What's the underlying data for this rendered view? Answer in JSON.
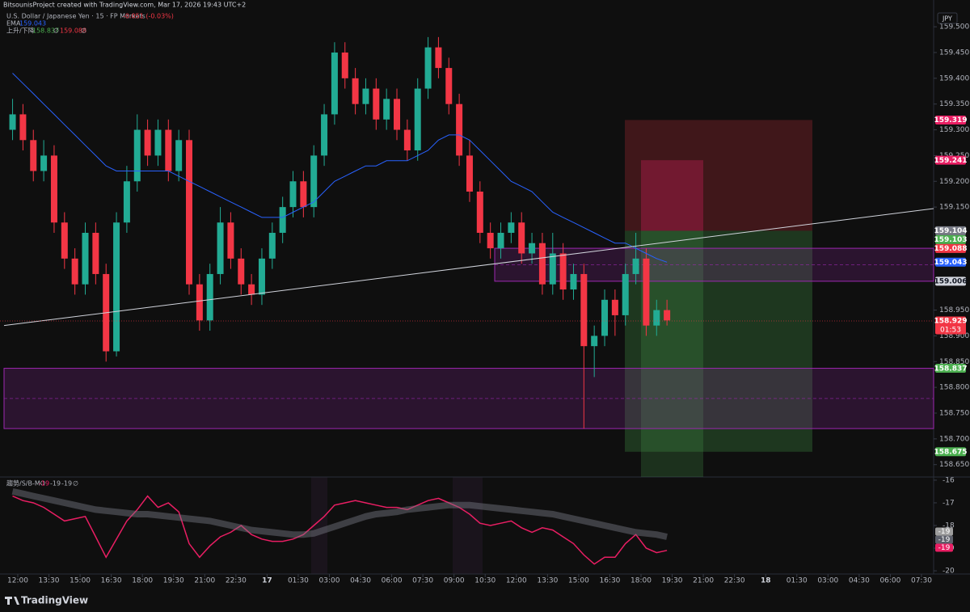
{
  "header": {
    "credit": "BitsounisProject created with TradingView.com, Mar 17, 2026 19:43 UTC+2",
    "symbol": "U.S. Dollar / Japanese Yen · 15 · FP Markets",
    "change": "-0.051 (-0.03%)",
    "ema_label": "EMA",
    "ema_value": "159.043",
    "st_label": "上升/下降",
    "st_up": "158.837",
    "st_up_sym": "∅",
    "st_down": "159.088",
    "st_down_sym": "∅",
    "currency": "JPY",
    "brand": "TradingView"
  },
  "chart_data": {
    "type": "candlestick",
    "xlim": [
      -1.21,
      88.67
    ],
    "xticks": [
      {
        "value": 0.5,
        "label": "12:00"
      },
      {
        "value": 3.5,
        "label": "13:30"
      },
      {
        "value": 6.5,
        "label": "15:00"
      },
      {
        "value": 9.5,
        "label": "16:30"
      },
      {
        "value": 12.5,
        "label": "18:00"
      },
      {
        "value": 15.5,
        "label": "19:30"
      },
      {
        "value": 18.5,
        "label": "21:00"
      },
      {
        "value": 21.5,
        "label": "22:30"
      },
      {
        "value": 24.5,
        "label": "17"
      },
      {
        "value": 27.5,
        "label": "01:30"
      },
      {
        "value": 30.5,
        "label": "03:00"
      },
      {
        "value": 33.5,
        "label": "04:30"
      },
      {
        "value": 36.5,
        "label": "06:00"
      },
      {
        "value": 39.5,
        "label": "07:30"
      },
      {
        "value": 42.5,
        "label": "09:00"
      },
      {
        "value": 45.5,
        "label": "10:30"
      },
      {
        "value": 48.5,
        "label": "12:00"
      },
      {
        "value": 51.5,
        "label": "13:30"
      },
      {
        "value": 54.5,
        "label": "15:00"
      },
      {
        "value": 57.5,
        "label": "16:30"
      },
      {
        "value": 60.5,
        "label": "18:00"
      },
      {
        "value": 63.5,
        "label": "19:30"
      },
      {
        "value": 66.5,
        "label": "21:00"
      },
      {
        "value": 69.5,
        "label": "22:30"
      },
      {
        "value": 72.5,
        "label": "18"
      },
      {
        "value": 75.5,
        "label": "01:30"
      },
      {
        "value": 78.5,
        "label": "03:00"
      },
      {
        "value": 81.5,
        "label": "04:30"
      },
      {
        "value": 84.5,
        "label": "06:00"
      },
      {
        "value": 87.5,
        "label": "07:30"
      }
    ],
    "ylim": [
      158.626,
      159.53
    ],
    "yticks": [
      {
        "value": 159.5,
        "label": "159.500"
      },
      {
        "value": 159.45,
        "label": "159.450"
      },
      {
        "value": 159.4,
        "label": "159.400"
      },
      {
        "value": 159.35,
        "label": "159.350"
      },
      {
        "value": 159.3,
        "label": "159.300"
      },
      {
        "value": 159.25,
        "label": "159.250"
      },
      {
        "value": 159.2,
        "label": "159.200"
      },
      {
        "value": 159.15,
        "label": "159.150"
      },
      {
        "value": 158.95,
        "label": "158.950"
      },
      {
        "value": 158.9,
        "label": "158.900"
      },
      {
        "value": 158.85,
        "label": "158.850"
      },
      {
        "value": 158.8,
        "label": "158.800"
      },
      {
        "value": 158.75,
        "label": "158.750"
      },
      {
        "value": 158.7,
        "label": "158.700"
      },
      {
        "value": 158.65,
        "label": "158.650"
      }
    ],
    "up_color": "#22ab94",
    "down_color": "#f23645",
    "candles": [
      [
        159.3,
        159.36,
        159.28,
        159.33
      ],
      [
        159.33,
        159.35,
        159.26,
        159.28
      ],
      [
        159.28,
        159.3,
        159.2,
        159.22
      ],
      [
        159.22,
        159.28,
        159.2,
        159.25
      ],
      [
        159.25,
        159.27,
        159.1,
        159.12
      ],
      [
        159.12,
        159.14,
        159.03,
        159.05
      ],
      [
        159.05,
        159.07,
        158.98,
        159.0
      ],
      [
        159.0,
        159.12,
        158.98,
        159.1
      ],
      [
        159.1,
        159.12,
        159.0,
        159.02
      ],
      [
        159.02,
        159.04,
        158.85,
        158.87
      ],
      [
        158.87,
        159.14,
        158.86,
        159.12
      ],
      [
        159.12,
        159.23,
        159.1,
        159.2
      ],
      [
        159.2,
        159.33,
        159.18,
        159.3
      ],
      [
        159.3,
        159.32,
        159.23,
        159.25
      ],
      [
        159.25,
        159.32,
        159.23,
        159.3
      ],
      [
        159.3,
        159.32,
        159.2,
        159.22
      ],
      [
        159.22,
        159.3,
        159.2,
        159.28
      ],
      [
        159.28,
        159.3,
        158.98,
        159.0
      ],
      [
        159.0,
        159.02,
        158.91,
        158.93
      ],
      [
        158.93,
        159.04,
        158.91,
        159.02
      ],
      [
        159.02,
        159.15,
        159.0,
        159.12
      ],
      [
        159.12,
        159.14,
        159.03,
        159.05
      ],
      [
        159.05,
        159.07,
        158.98,
        159.0
      ],
      [
        159.0,
        159.02,
        158.96,
        158.98
      ],
      [
        158.98,
        159.07,
        158.96,
        159.05
      ],
      [
        159.05,
        159.12,
        159.03,
        159.1
      ],
      [
        159.1,
        159.17,
        159.08,
        159.15
      ],
      [
        159.15,
        159.22,
        159.13,
        159.2
      ],
      [
        159.2,
        159.22,
        159.13,
        159.15
      ],
      [
        159.15,
        159.27,
        159.13,
        159.25
      ],
      [
        159.25,
        159.35,
        159.23,
        159.33
      ],
      [
        159.33,
        159.47,
        159.31,
        159.45
      ],
      [
        159.45,
        159.47,
        159.38,
        159.4
      ],
      [
        159.4,
        159.42,
        159.33,
        159.35
      ],
      [
        159.35,
        159.4,
        159.33,
        159.38
      ],
      [
        159.38,
        159.4,
        159.3,
        159.32
      ],
      [
        159.32,
        159.38,
        159.3,
        159.36
      ],
      [
        159.36,
        159.38,
        159.28,
        159.3
      ],
      [
        159.3,
        159.32,
        159.24,
        159.26
      ],
      [
        159.26,
        159.4,
        159.24,
        159.38
      ],
      [
        159.38,
        159.48,
        159.36,
        159.46
      ],
      [
        159.46,
        159.48,
        159.4,
        159.42
      ],
      [
        159.42,
        159.44,
        159.33,
        159.35
      ],
      [
        159.35,
        159.37,
        159.23,
        159.25
      ],
      [
        159.25,
        159.28,
        159.16,
        159.18
      ],
      [
        159.18,
        159.2,
        159.08,
        159.1
      ],
      [
        159.1,
        159.12,
        159.05,
        159.07
      ],
      [
        159.07,
        159.12,
        159.05,
        159.1
      ],
      [
        159.1,
        159.14,
        159.08,
        159.12
      ],
      [
        159.12,
        159.14,
        159.04,
        159.06
      ],
      [
        159.06,
        159.1,
        159.04,
        159.08
      ],
      [
        159.08,
        159.1,
        158.98,
        159.0
      ],
      [
        159.0,
        159.1,
        158.98,
        159.06
      ],
      [
        159.06,
        159.08,
        158.97,
        158.99
      ],
      [
        158.99,
        159.04,
        158.97,
        159.02
      ],
      [
        159.02,
        159.04,
        158.72,
        158.88
      ],
      [
        158.88,
        158.92,
        158.82,
        158.9
      ],
      [
        158.9,
        158.99,
        158.88,
        158.97
      ],
      [
        158.97,
        158.99,
        158.9,
        158.94
      ],
      [
        158.94,
        159.04,
        158.92,
        159.02
      ],
      [
        159.02,
        159.1,
        159.0,
        159.05
      ],
      [
        159.05,
        159.07,
        158.9,
        158.92
      ],
      [
        158.92,
        158.97,
        158.9,
        158.95
      ],
      [
        158.95,
        158.97,
        158.92,
        158.93
      ]
    ],
    "series": [
      {
        "name": "EMA",
        "color": "#2962ff",
        "values": [
          159.41,
          159.39,
          159.37,
          159.35,
          159.33,
          159.31,
          159.29,
          159.27,
          159.25,
          159.23,
          159.22,
          159.22,
          159.22,
          159.22,
          159.22,
          159.22,
          159.21,
          159.2,
          159.19,
          159.18,
          159.17,
          159.16,
          159.15,
          159.14,
          159.13,
          159.13,
          159.13,
          159.14,
          159.15,
          159.16,
          159.18,
          159.2,
          159.21,
          159.22,
          159.23,
          159.23,
          159.24,
          159.24,
          159.24,
          159.25,
          159.26,
          159.28,
          159.29,
          159.29,
          159.28,
          159.26,
          159.24,
          159.22,
          159.2,
          159.19,
          159.18,
          159.16,
          159.14,
          159.13,
          159.12,
          159.11,
          159.1,
          159.09,
          159.08,
          159.08,
          159.07,
          159.06,
          159.05,
          159.043
        ]
      }
    ],
    "zones": [
      {
        "top": 159.07,
        "bottom": 159.006,
        "color": "#9c27b0"
      },
      {
        "top": 158.837,
        "bottom": 158.72,
        "color": "#9c27b0"
      }
    ],
    "trendline": {
      "x": [
        -0.82,
        88.67
      ],
      "y": [
        158.92,
        159.147
      ],
      "color": "#d1d4dc"
    },
    "position": {
      "stop": 159.319,
      "entry": 159.104,
      "target": 158.675
    },
    "inner_position": {
      "stop": 159.241,
      "entry": 159.104
    },
    "price_labels": [
      {
        "value": 159.319,
        "color": "#e91e63"
      },
      {
        "value": 159.241,
        "color": "#e91e63"
      },
      {
        "value": 159.104,
        "color": "#787b86"
      },
      {
        "value": 159.103,
        "color": "#4caf50"
      },
      {
        "value": 159.088,
        "color": "#f23645"
      },
      {
        "value": 159.043,
        "color": "#2962ff"
      },
      {
        "value": 159.006,
        "color": "#d1d4dc"
      },
      {
        "value": 158.929,
        "sub": "01:53",
        "color": "#f23645"
      },
      {
        "value": 158.837,
        "color": "#4caf50"
      },
      {
        "value": 158.675,
        "color": "#4caf50"
      }
    ]
  },
  "oscillator": {
    "type": "line",
    "title": "趨勢/S/B-MO",
    "legend_values": [
      "-19",
      "-19",
      "-19",
      "∅"
    ],
    "ylim": [
      -20.14,
      -15.86
    ],
    "yticks": [
      -16,
      -17,
      -18,
      -19,
      -20
    ],
    "series": [
      {
        "color": "#e91e63",
        "values": [
          -16.7,
          -16.9,
          -17.0,
          -17.2,
          -17.5,
          -17.8,
          -17.7,
          -17.6,
          -18.5,
          -19.4,
          -18.6,
          -17.8,
          -17.3,
          -16.7,
          -17.2,
          -17.0,
          -17.4,
          -18.8,
          -19.4,
          -18.9,
          -18.5,
          -18.3,
          -18.0,
          -18.4,
          -18.6,
          -18.7,
          -18.7,
          -18.6,
          -18.4,
          -18.0,
          -17.6,
          -17.1,
          -17.0,
          -16.9,
          -17.0,
          -17.1,
          -17.2,
          -17.2,
          -17.3,
          -17.1,
          -16.9,
          -16.8,
          -17.0,
          -17.2,
          -17.5,
          -17.9,
          -18.0,
          -17.9,
          -17.8,
          -18.1,
          -18.3,
          -18.1,
          -18.2,
          -18.5,
          -18.8,
          -19.3,
          -19.7,
          -19.4,
          -19.4,
          -18.8,
          -18.4,
          -19.0,
          -19.2,
          -19.1
        ]
      },
      {
        "color": "#787b86",
        "values": [
          -16.5,
          -16.6,
          -16.7,
          -16.8,
          -16.9,
          -17.0,
          -17.1,
          -17.2,
          -17.3,
          -17.35,
          -17.4,
          -17.45,
          -17.5,
          -17.5,
          -17.55,
          -17.6,
          -17.65,
          -17.7,
          -17.75,
          -17.8,
          -17.9,
          -18.0,
          -18.1,
          -18.2,
          -18.25,
          -18.3,
          -18.35,
          -18.4,
          -18.4,
          -18.35,
          -18.2,
          -18.05,
          -17.9,
          -17.75,
          -17.6,
          -17.5,
          -17.45,
          -17.4,
          -17.3,
          -17.25,
          -17.2,
          -17.15,
          -17.1,
          -17.1,
          -17.1,
          -17.15,
          -17.2,
          -17.25,
          -17.3,
          -17.35,
          -17.4,
          -17.45,
          -17.5,
          -17.6,
          -17.7,
          -17.8,
          -17.9,
          -18.0,
          -18.1,
          -18.2,
          -18.3,
          -18.35,
          -18.4,
          -18.5
        ]
      }
    ],
    "labels": [
      {
        "value": -19,
        "label": "-19",
        "color": "#9e9e9e"
      },
      {
        "value": -19,
        "label": "-19",
        "color": "#5d606b"
      },
      {
        "value": -19,
        "label": "-19",
        "color": "#e91e63"
      }
    ]
  }
}
